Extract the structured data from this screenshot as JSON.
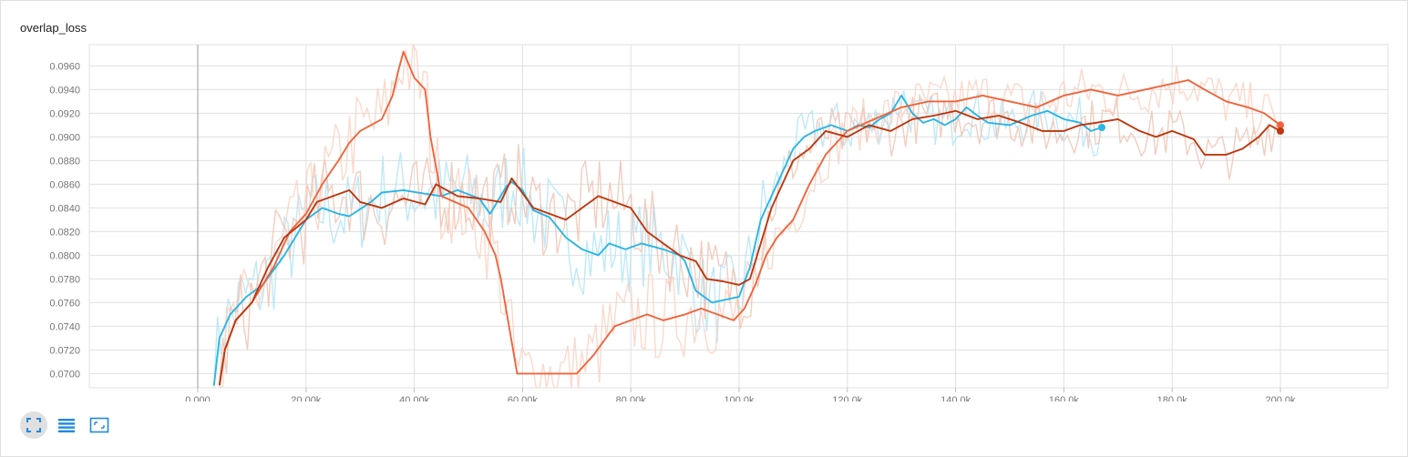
{
  "card": {
    "title": "overlap_loss"
  },
  "toolbar": {
    "items": [
      {
        "icon": "fit-domain-icon",
        "active": true
      },
      {
        "icon": "toggle-log-scale-icon",
        "active": false
      },
      {
        "icon": "select-region-icon",
        "active": false
      }
    ],
    "icon_color": "#1e88e5"
  },
  "chart_data": {
    "type": "line",
    "title": "overlap_loss",
    "xlabel": "",
    "ylabel": "",
    "xlim": [
      0,
      200000
    ],
    "ylim": [
      0.0688,
      0.0978
    ],
    "grid": true,
    "x_ticks": [
      "0.000",
      "20.00k",
      "40.00k",
      "60.00k",
      "80.00k",
      "100.0k",
      "120.0k",
      "140.0k",
      "160.0k",
      "180.0k",
      "200.0k"
    ],
    "y_ticks": [
      "0.0700",
      "0.0720",
      "0.0740",
      "0.0760",
      "0.0780",
      "0.0800",
      "0.0820",
      "0.0840",
      "0.0860",
      "0.0880",
      "0.0900",
      "0.0920",
      "0.0940",
      "0.0960"
    ],
    "series": [
      {
        "color": "#29b6e6",
        "raw_color": "#b3e5f7",
        "end_marker": true,
        "x": [
          3000,
          4000,
          6000,
          9000,
          12000,
          16000,
          20000,
          23000,
          26000,
          28000,
          32000,
          34000,
          38000,
          42000,
          45000,
          48000,
          52000,
          54000,
          57000,
          58000,
          60000,
          62000,
          65000,
          68000,
          71000,
          74000,
          76000,
          79000,
          82000,
          86000,
          89000,
          90000,
          92000,
          95000,
          97000,
          100000,
          102000,
          104000,
          106000,
          108000,
          110000,
          112000,
          114000,
          117000,
          120000,
          122000,
          124000,
          126000,
          128000,
          130000,
          132000,
          134000,
          136000,
          138000,
          140000,
          142000,
          144000,
          146000,
          150000,
          154000,
          157000,
          160000,
          163000,
          165000,
          167000
        ],
        "y": [
          0.069,
          0.073,
          0.075,
          0.0765,
          0.0775,
          0.08,
          0.083,
          0.084,
          0.0835,
          0.0833,
          0.0845,
          0.0853,
          0.0855,
          0.0852,
          0.085,
          0.0855,
          0.0848,
          0.0835,
          0.0858,
          0.0862,
          0.0855,
          0.0838,
          0.0832,
          0.0815,
          0.0805,
          0.08,
          0.081,
          0.0805,
          0.081,
          0.0805,
          0.08,
          0.0795,
          0.077,
          0.076,
          0.0762,
          0.0765,
          0.079,
          0.083,
          0.085,
          0.087,
          0.089,
          0.09,
          0.0905,
          0.091,
          0.0905,
          0.091,
          0.0908,
          0.0915,
          0.092,
          0.0935,
          0.092,
          0.0912,
          0.0915,
          0.091,
          0.0915,
          0.0925,
          0.0918,
          0.0912,
          0.091,
          0.0918,
          0.0922,
          0.0915,
          0.0912,
          0.0905,
          0.0908
        ]
      },
      {
        "color": "#f0643c",
        "raw_color": "#fbd2c3",
        "end_marker": true,
        "x": [
          4000,
          5000,
          7000,
          10000,
          14000,
          17000,
          20000,
          23000,
          26000,
          28000,
          30000,
          32000,
          34000,
          36000,
          37000,
          38000,
          40000,
          42000,
          43000,
          45000,
          50000,
          53000,
          55000,
          56000,
          59000,
          61000,
          63000,
          66000,
          68000,
          70000,
          73000,
          77000,
          80000,
          83000,
          86000,
          90000,
          93000,
          96000,
          99000,
          101000,
          103000,
          105000,
          107000,
          110000,
          113000,
          116000,
          120000,
          125000,
          130000,
          135000,
          140000,
          145000,
          150000,
          155000,
          160000,
          165000,
          170000,
          175000,
          180000,
          183000,
          186000,
          190000,
          194000,
          197000,
          200000
        ],
        "y": [
          0.069,
          0.072,
          0.0745,
          0.076,
          0.079,
          0.082,
          0.0835,
          0.086,
          0.088,
          0.0895,
          0.0905,
          0.091,
          0.0915,
          0.0935,
          0.0955,
          0.0972,
          0.095,
          0.094,
          0.09,
          0.085,
          0.084,
          0.082,
          0.08,
          0.078,
          0.07,
          0.07,
          0.07,
          0.07,
          0.07,
          0.07,
          0.0715,
          0.074,
          0.0745,
          0.075,
          0.0745,
          0.075,
          0.0755,
          0.075,
          0.0745,
          0.0755,
          0.0775,
          0.08,
          0.0815,
          0.083,
          0.086,
          0.0885,
          0.0905,
          0.0915,
          0.0925,
          0.093,
          0.093,
          0.0935,
          0.093,
          0.0925,
          0.0935,
          0.094,
          0.0935,
          0.094,
          0.0945,
          0.0948,
          0.094,
          0.093,
          0.0925,
          0.092,
          0.091
        ]
      },
      {
        "color": "#bf360c",
        "raw_color": "#f0c4b4",
        "end_marker": true,
        "x": [
          4000,
          5000,
          7000,
          10000,
          13000,
          16000,
          20000,
          22000,
          25000,
          28000,
          30000,
          34000,
          38000,
          42000,
          44000,
          48000,
          52000,
          56000,
          58000,
          62000,
          65000,
          68000,
          71000,
          74000,
          77000,
          80000,
          83000,
          86000,
          89000,
          92000,
          94000,
          97000,
          100000,
          102000,
          104000,
          106000,
          108000,
          110000,
          113000,
          116000,
          120000,
          124000,
          128000,
          132000,
          136000,
          140000,
          144000,
          148000,
          152000,
          156000,
          160000,
          163000,
          166000,
          170000,
          174000,
          177000,
          180000,
          184000,
          186000,
          190000,
          193000,
          196000,
          198000,
          200000
        ],
        "y": [
          0.069,
          0.072,
          0.0745,
          0.076,
          0.079,
          0.0815,
          0.083,
          0.0845,
          0.085,
          0.0855,
          0.0845,
          0.084,
          0.0848,
          0.0843,
          0.086,
          0.085,
          0.0848,
          0.0845,
          0.0865,
          0.084,
          0.0835,
          0.083,
          0.084,
          0.085,
          0.0845,
          0.084,
          0.082,
          0.081,
          0.08,
          0.0795,
          0.078,
          0.0778,
          0.0775,
          0.078,
          0.081,
          0.084,
          0.086,
          0.088,
          0.089,
          0.0905,
          0.09,
          0.091,
          0.0905,
          0.0915,
          0.0918,
          0.0922,
          0.0915,
          0.0918,
          0.0912,
          0.0905,
          0.0905,
          0.091,
          0.0912,
          0.0915,
          0.0905,
          0.09,
          0.0905,
          0.0898,
          0.0885,
          0.0885,
          0.089,
          0.09,
          0.091,
          0.0905
        ]
      }
    ]
  }
}
